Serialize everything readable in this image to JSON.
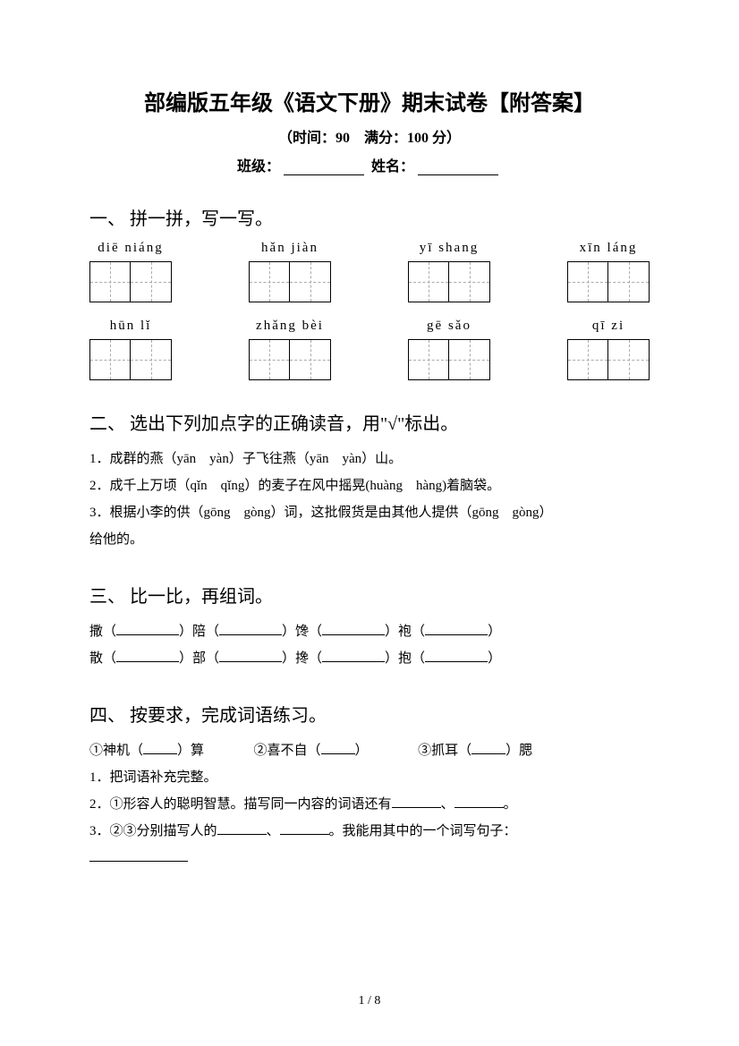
{
  "title": "部编版五年级《语文下册》期末试卷【附答案】",
  "subtitle": "（时间：90　满分：100 分）",
  "info": {
    "class_label": "班级：",
    "name_label": "姓名："
  },
  "section1": {
    "title": "一、 拼一拼，写一写。",
    "row1": [
      "diē   niáng",
      "hǎn   jiàn",
      "yī   shang",
      "xīn   láng"
    ],
    "row2": [
      "hūn   lǐ",
      "zhǎng   bèi",
      "gē   sǎo",
      "qī   zi"
    ]
  },
  "section2": {
    "title": "二、 选出下列加点字的正确读音，用\"√\"标出。",
    "q1": "1．成群的燕（yān　yàn）子飞往燕（yān　yàn）山。",
    "q2": "2．成千上万顷（qǐn　qǐng）的麦子在风中摇晃(huàng　hàng)着脑袋。",
    "q3a": "3．根据小李的供（gōng　gòng）词，这批假货是由其他人提供（gōng　gòng）",
    "q3b": "给他的。"
  },
  "section3": {
    "title": "三、 比一比，再组词。",
    "r1": [
      "撒（",
      "）陪（",
      "）馋（",
      "）袍（",
      "）"
    ],
    "r2": [
      "散（",
      "）部（",
      "）搀（",
      "）抱（",
      "）"
    ]
  },
  "section4": {
    "title": "四、 按要求，完成词语练习。",
    "items": {
      "a": "①神机（",
      "b": "）算",
      "c": "②喜不自（",
      "d": "）",
      "e": "③抓耳（",
      "f": "）腮"
    },
    "q1": "1．把词语补充完整。",
    "q2a": "2．①形容人的聪明智慧。描写同一内容的词语还有",
    "q2b": "、",
    "q2c": "。",
    "q3a": "3．②③分别描写人的",
    "q3b": "、",
    "q3c": "。我能用其中的一个词写句子："
  },
  "page": "1 / 8"
}
